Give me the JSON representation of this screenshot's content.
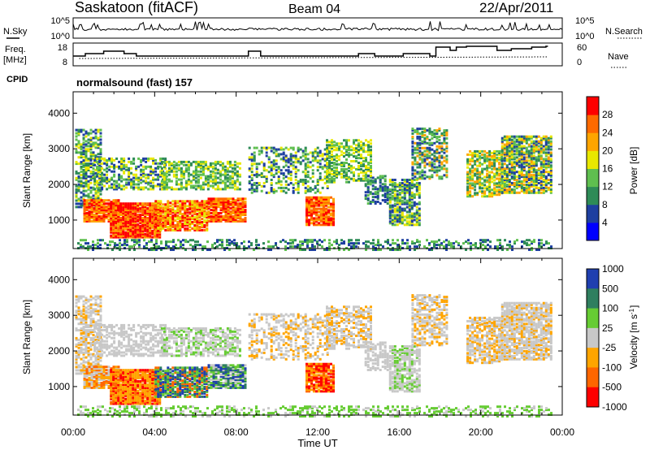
{
  "header": {
    "station": "Saskatoon (fitACF)",
    "beam": "Beam 04",
    "date": "22/Apr/2011"
  },
  "noise_panel": {
    "left_label": "N.Sky",
    "right_label": "N.Search",
    "left_ticks": [
      "10^5",
      "10^0"
    ],
    "right_ticks": [
      "10^5",
      "10^0"
    ]
  },
  "freq_panel": {
    "left_label_1": "Freq.",
    "left_label_2": "[MHz]",
    "right_label": "Nave",
    "left_ticks": [
      "18",
      "8"
    ],
    "right_ticks": [
      "60",
      "0"
    ]
  },
  "cpid": {
    "label": "CPID",
    "program": "normalsound (fast) 157"
  },
  "colors": {
    "power_scale": [
      "#0000ff",
      "#1e3fa0",
      "#2e8b57",
      "#5fbf4f",
      "#e8e800",
      "#ffa500",
      "#ff6a00",
      "#ff0000"
    ],
    "velocity_scale": [
      "#1f3fb0",
      "#2f7f5f",
      "#66cc33",
      "#c8c8c8",
      "#ffa500",
      "#ff6600",
      "#ff0000"
    ]
  },
  "chart_data": [
    {
      "type": "heatmap",
      "title": "",
      "xlabel": "Time UT",
      "ylabel": "Slant Range [km]",
      "x_ticks": [
        "00:00",
        "04:00",
        "08:00",
        "12:00",
        "16:00",
        "20:00",
        "00:00"
      ],
      "y_ticks": [
        "1000",
        "2000",
        "3000",
        "4000"
      ],
      "ylim": [
        200,
        4600
      ],
      "colorbar": {
        "label": "Power [dB]",
        "ticks": [
          "4",
          "8",
          "12",
          "16",
          "20",
          "24",
          "28"
        ],
        "range": [
          0,
          32
        ]
      }
    },
    {
      "type": "heatmap",
      "title": "",
      "xlabel": "Time UT",
      "ylabel": "Slant Range [km]",
      "x_ticks": [
        "00:00",
        "04:00",
        "08:00",
        "12:00",
        "16:00",
        "20:00",
        "00:00"
      ],
      "y_ticks": [
        "1000",
        "2000",
        "3000",
        "4000"
      ],
      "ylim": [
        200,
        4600
      ],
      "colorbar": {
        "label": "Velocity [m s-1]",
        "ticks": [
          "1000",
          "500",
          "100",
          "25",
          "-25",
          "-100",
          "-500",
          "-1000"
        ]
      }
    }
  ]
}
